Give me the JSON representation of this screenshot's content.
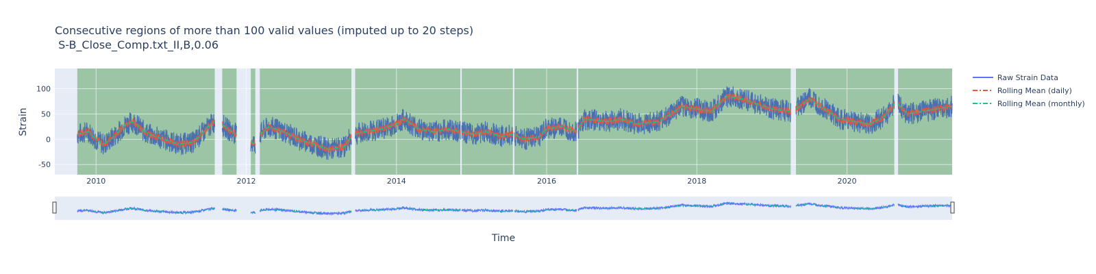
{
  "chart_data": {
    "type": "line",
    "title_line1": "Consecutive regions of more than 100 valid values (imputed up to 20 steps)",
    "title_line2": " S-B_Close_Comp.txt_II,B,0.06",
    "xlabel": "Time",
    "ylabel": "Strain",
    "xlim": [
      2009.45,
      2021.4
    ],
    "ylim": [
      -70,
      140
    ],
    "x_ticks": [
      2010,
      2012,
      2014,
      2016,
      2018,
      2020
    ],
    "y_ticks": [
      -50,
      0,
      50,
      100
    ],
    "grid": true,
    "legend_position": "right",
    "legend": [
      {
        "name": "Raw Strain Data",
        "color": "#636efa",
        "dash": "solid"
      },
      {
        "name": "Rolling Mean (daily)",
        "color": "#ef553b",
        "dash": "dashdot"
      },
      {
        "name": "Rolling Mean (monthly)",
        "color": "#00cc96",
        "dash": "dashdot"
      }
    ],
    "valid_regions": [
      [
        2009.75,
        2011.58
      ],
      [
        2011.68,
        2011.87
      ],
      [
        2012.06,
        2012.12
      ],
      [
        2012.18,
        2013.4
      ],
      [
        2013.45,
        2014.85
      ],
      [
        2014.87,
        2015.55
      ],
      [
        2015.57,
        2016.4
      ],
      [
        2016.42,
        2019.25
      ],
      [
        2019.32,
        2020.63
      ],
      [
        2020.68,
        2021.4
      ]
    ],
    "region_color": "#2e8b2e",
    "raw_color": "#4a70b0",
    "mean_x": [
      2009.75,
      2009.9,
      2010.0,
      2010.1,
      2010.2,
      2010.3,
      2010.4,
      2010.5,
      2010.6,
      2010.7,
      2010.8,
      2010.9,
      2011.0,
      2011.1,
      2011.2,
      2011.3,
      2011.4,
      2011.5,
      2011.58,
      2011.68,
      2011.75,
      2011.87,
      2012.06,
      2012.12,
      2012.18,
      2012.3,
      2012.5,
      2012.7,
      2012.9,
      2013.1,
      2013.3,
      2013.4,
      2013.45,
      2013.6,
      2013.8,
      2014.0,
      2014.1,
      2014.3,
      2014.5,
      2014.7,
      2014.85,
      2015.0,
      2015.2,
      2015.4,
      2015.55,
      2015.7,
      2015.9,
      2016.0,
      2016.2,
      2016.4,
      2016.5,
      2016.8,
      2017.0,
      2017.2,
      2017.5,
      2017.8,
      2018.0,
      2018.2,
      2018.4,
      2018.6,
      2018.8,
      2019.0,
      2019.25,
      2019.32,
      2019.5,
      2019.7,
      2019.9,
      2020.1,
      2020.3,
      2020.5,
      2020.63,
      2020.68,
      2020.8,
      2021.0,
      2021.2,
      2021.4
    ],
    "mean_y": [
      10,
      15,
      0,
      -10,
      0,
      15,
      30,
      35,
      20,
      10,
      5,
      0,
      -5,
      -10,
      -8,
      -5,
      10,
      25,
      35,
      30,
      20,
      10,
      -5,
      -10,
      10,
      25,
      15,
      0,
      -10,
      -20,
      -15,
      5,
      10,
      15,
      20,
      30,
      40,
      20,
      15,
      20,
      15,
      10,
      15,
      5,
      10,
      0,
      5,
      20,
      25,
      15,
      40,
      35,
      40,
      30,
      35,
      65,
      60,
      55,
      85,
      80,
      70,
      60,
      55,
      60,
      80,
      60,
      40,
      35,
      30,
      45,
      70,
      70,
      50,
      55,
      60,
      65
    ]
  }
}
